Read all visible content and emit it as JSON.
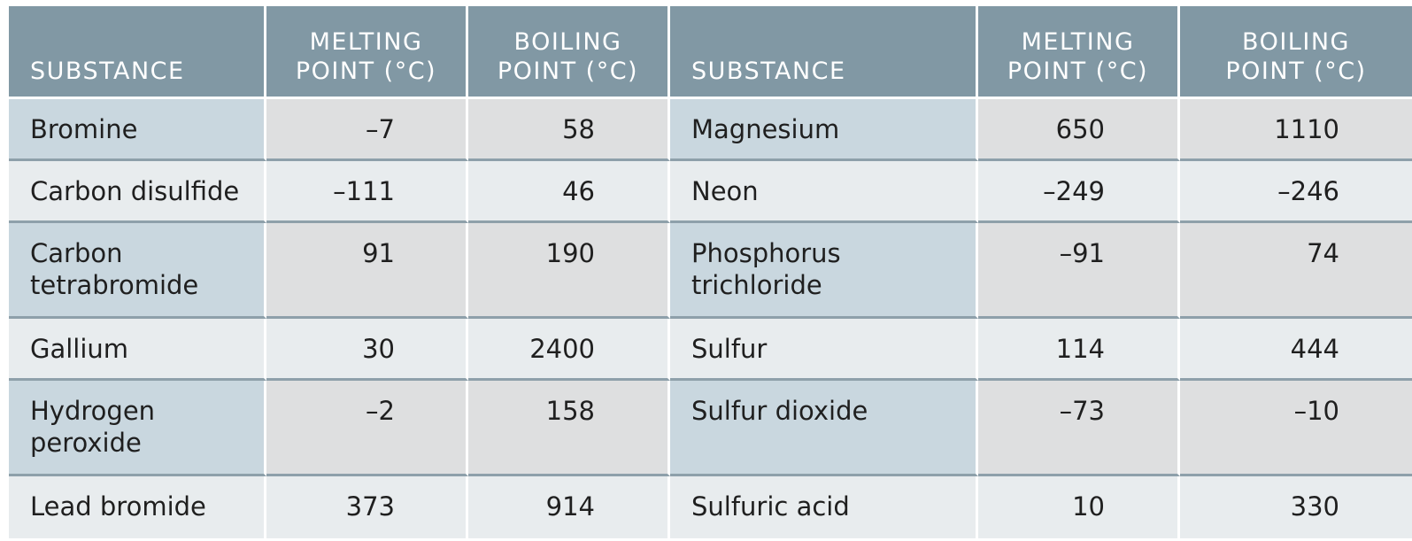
{
  "header": {
    "substance": "SUBSTANCE",
    "melting_line1": "MELTING",
    "melting_line2": "POINT (°C)",
    "boiling_line1": "BOILING",
    "boiling_line2": "POINT (°C)"
  },
  "rows": [
    {
      "left": {
        "name": "Bromine",
        "mp": "–7",
        "bp": "58"
      },
      "right": {
        "name": "Magnesium",
        "mp": "650",
        "bp": "1110"
      }
    },
    {
      "left": {
        "name": "Carbon disulfide",
        "mp": "–111",
        "bp": "46"
      },
      "right": {
        "name": "Neon",
        "mp": "–249",
        "bp": "–246"
      }
    },
    {
      "left": {
        "name_line1": "Carbon",
        "name_line2": "tetrabromide",
        "mp": "91",
        "bp": "190"
      },
      "right": {
        "name_line1": "Phosphorus",
        "name_line2": "trichloride",
        "mp": "–91",
        "bp": "74"
      }
    },
    {
      "left": {
        "name": "Gallium",
        "mp": "30",
        "bp": "2400"
      },
      "right": {
        "name": "Sulfur",
        "mp": "114",
        "bp": "444"
      }
    },
    {
      "left": {
        "name_line1": "Hydrogen",
        "name_line2": "peroxide",
        "mp": "–2",
        "bp": "158"
      },
      "right": {
        "name": "Sulfur dioxide",
        "mp": "–73",
        "bp": "–10"
      }
    },
    {
      "left": {
        "name": "Lead bromide",
        "mp": "373",
        "bp": "914"
      },
      "right": {
        "name": "Sulfuric acid",
        "mp": "10",
        "bp": "330"
      }
    }
  ],
  "colors": {
    "header_bg": "#8198a4",
    "name_cell_bg": "#c9d7df",
    "value_cell_bg": "#dedfe0",
    "alt_row_bg": "#e8ecee"
  }
}
